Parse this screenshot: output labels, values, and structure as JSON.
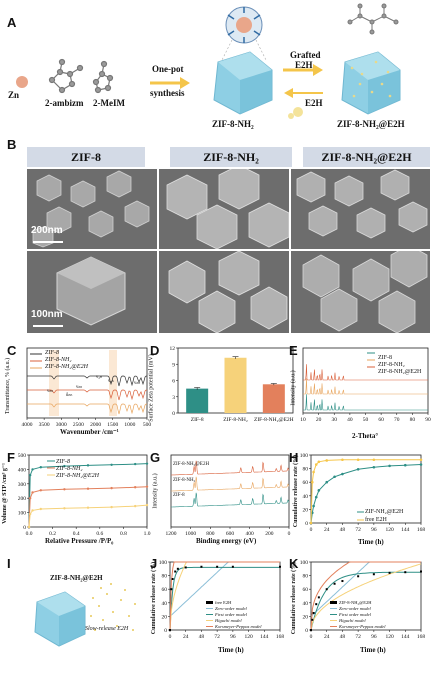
{
  "panel_labels": {
    "A": "A",
    "B": "B",
    "C": "C",
    "D": "D",
    "E": "E",
    "F": "F",
    "G": "G",
    "H": "H",
    "I": "I",
    "J": "J",
    "K": "K"
  },
  "schemeA": {
    "zn": "Zn",
    "ambizm": "2-ambizm",
    "meim": "2-MeIM",
    "onepot_1": "One-pot",
    "onepot_2": "synthesis",
    "grafted_1": "Grafted",
    "grafted_2": "E2H",
    "e2h": "E2H",
    "product1": "ZIF-8-NH₂",
    "product2": "ZIF-8-NH₂@E2H",
    "color_zn": "#e9a68a",
    "color_crystal": "#8ecfe4",
    "color_arrow": "#f4c54a"
  },
  "panelB": {
    "headers": [
      "ZIF-8",
      "ZIF-8-NH₂",
      "ZIF-8-NH₂@E2H"
    ],
    "scale_top": "200nm",
    "scale_bottom": "100nm",
    "header_color": "#d3dae6"
  },
  "panelC": {
    "legend": [
      "ZIF-8",
      "ZIF-8-NH₂",
      "ZIF-8-NH₂@E2H"
    ],
    "ylabel": "Transmittance, % (a.u.)",
    "xlabel": "Wavenumber /cm⁻¹",
    "xticks": [
      "4000",
      "3500",
      "3000",
      "2500",
      "2000",
      "1500",
      "1000",
      "500"
    ],
    "annotations": [
      "νₙₕ",
      "δₙₕ",
      "νₙₕ",
      "ν₂ₙ",
      "νₒₕ",
      "νₙₕ"
    ],
    "colors": [
      "#333333",
      "#d9603b",
      "#e8a55e"
    ]
  },
  "chart_data": [
    {
      "panel": "D",
      "type": "bar",
      "categories": [
        "ZIF-8",
        "ZIF-8-NH₂",
        "ZIF-8-NH₂@E2H"
      ],
      "values": [
        4.5,
        10.2,
        5.3
      ],
      "errors": [
        0.2,
        0.2,
        0.15
      ],
      "ylabel": "Surface Zeta potential (mV)",
      "yticks": [
        "0",
        "3",
        "6",
        "9",
        "12"
      ],
      "ylim": [
        0,
        12
      ],
      "colors": [
        "#2e8f86",
        "#f6d27a",
        "#e3805c"
      ]
    },
    {
      "panel": "E",
      "type": "line",
      "legend": [
        "ZIF-8",
        "ZIF-8-NH₂",
        "ZIF-8-NH₂@E2H"
      ],
      "ylabel": "Intensity (a.u.)",
      "xlabel": "2-Theta°",
      "xticks": [
        "10",
        "20",
        "30",
        "40",
        "50",
        "60",
        "70",
        "80",
        "90"
      ],
      "colors": [
        "#2e8f86",
        "#e8a55e",
        "#d9603b"
      ]
    },
    {
      "panel": "F",
      "type": "line",
      "legend": [
        "ZIF-8",
        "ZIF-8-NH₂",
        "ZIF-8-NH₂@E2H"
      ],
      "ylabel": "Volume @ STP /cm³ g⁻¹",
      "xlabel": "Relative Pressure /P/P₀",
      "xticks": [
        "0.0",
        "0.2",
        "0.4",
        "0.6",
        "0.8",
        "1.0"
      ],
      "yticks": [
        "0",
        "100",
        "200",
        "300",
        "400",
        "500"
      ],
      "ylim": [
        0,
        500
      ],
      "series": [
        {
          "name": "ZIF-8",
          "x": [
            0,
            0.01,
            0.03,
            0.1,
            0.3,
            0.5,
            0.7,
            0.9,
            1.0
          ],
          "values": [
            0,
            360,
            400,
            415,
            423,
            428,
            432,
            437,
            440
          ]
        },
        {
          "name": "ZIF-8-NH₂",
          "x": [
            0,
            0.01,
            0.03,
            0.1,
            0.3,
            0.5,
            0.7,
            0.9,
            1.0
          ],
          "values": [
            0,
            200,
            240,
            255,
            262,
            266,
            270,
            276,
            280
          ]
        },
        {
          "name": "ZIF-8-NH₂@E2H",
          "x": [
            0,
            0.01,
            0.03,
            0.1,
            0.3,
            0.5,
            0.7,
            0.9,
            1.0
          ],
          "values": [
            0,
            90,
            115,
            125,
            130,
            134,
            138,
            145,
            152
          ]
        }
      ],
      "colors": [
        "#2e8f86",
        "#e3805c",
        "#f6d27a"
      ]
    },
    {
      "panel": "G",
      "type": "line",
      "legend": [
        "ZIF-8-NH₂@E2H",
        "ZIF-8-NH₂",
        "ZIF-8"
      ],
      "ylabel": "Intensity (a.u.)",
      "xlabel": "Binding energy (eV)",
      "xticks": [
        "1200",
        "1000",
        "800",
        "600",
        "400",
        "200",
        "0"
      ],
      "colors": [
        "#d9603b",
        "#e8a55e",
        "#2e8f86"
      ]
    },
    {
      "panel": "H",
      "type": "line",
      "ylabel": "Cumulative release rate (%)",
      "xlabel": "Time (h)",
      "xticks": [
        "0",
        "24",
        "48",
        "72",
        "96",
        "120",
        "144",
        "168"
      ],
      "yticks": [
        "0",
        "20",
        "40",
        "60",
        "80",
        "100"
      ],
      "xlim": [
        0,
        168
      ],
      "ylim": [
        0,
        100
      ],
      "series": [
        {
          "name": "ZIF-NH₂@E2H",
          "x": [
            0,
            2,
            4,
            8,
            12,
            24,
            36,
            48,
            72,
            96,
            120,
            144,
            168
          ],
          "values": [
            0,
            15,
            25,
            38,
            48,
            60,
            68,
            72,
            79,
            82,
            84,
            85,
            86
          ]
        },
        {
          "name": "free E2H",
          "x": [
            0,
            2,
            4,
            8,
            12,
            24,
            48,
            72,
            96,
            168
          ],
          "values": [
            0,
            60,
            75,
            86,
            90,
            92,
            93,
            93,
            93,
            93
          ]
        }
      ],
      "colors": [
        "#2e8f86",
        "#f6c64a"
      ]
    },
    {
      "panel": "J",
      "type": "line",
      "ylabel": "Cumulative release rate (%)",
      "xlabel": "Time (h)",
      "xticks": [
        "0",
        "24",
        "48",
        "72",
        "96",
        "120",
        "144",
        "168"
      ],
      "yticks": [
        "0",
        "20",
        "40",
        "60",
        "80",
        "100"
      ],
      "xlim": [
        0,
        168
      ],
      "ylim": [
        0,
        100
      ],
      "legend": [
        "free E2H",
        "Zero-order model",
        "First order model",
        "Higuchi model",
        "Korsmeyer-Peppas model"
      ],
      "series": [
        {
          "name": "free E2H",
          "x": [
            0,
            2,
            4,
            8,
            12,
            24,
            48,
            72,
            96,
            168
          ],
          "values": [
            0,
            60,
            75,
            86,
            90,
            92,
            93,
            93,
            93,
            93
          ]
        }
      ],
      "colors": [
        "#000000",
        "#8cbfd8",
        "#2e8f86",
        "#f6d27a",
        "#e3805c"
      ]
    },
    {
      "panel": "K",
      "type": "line",
      "ylabel": "Cumulative release rate (%)",
      "xlabel": "Time (h)",
      "xticks": [
        "0",
        "24",
        "48",
        "72",
        "96",
        "120",
        "144",
        "168"
      ],
      "yticks": [
        "0",
        "20",
        "40",
        "60",
        "80",
        "100"
      ],
      "xlim": [
        0,
        168
      ],
      "ylim": [
        0,
        100
      ],
      "legend": [
        "ZIF-8-NH₂@E2H",
        "Zero-order model",
        "First order model",
        "Higuchi model",
        "Korsmeyer-Peppas model"
      ],
      "series": [
        {
          "name": "ZIF-8-NH₂@E2H",
          "x": [
            0,
            2,
            4,
            8,
            12,
            24,
            36,
            48,
            72,
            96,
            120,
            144,
            168
          ],
          "values": [
            0,
            15,
            25,
            38,
            48,
            60,
            68,
            72,
            79,
            82,
            84,
            85,
            86
          ]
        }
      ],
      "colors": [
        "#000000",
        "#8cbfd8",
        "#2e8f86",
        "#f6d27a",
        "#e3805c"
      ]
    }
  ],
  "panelI": {
    "title": "ZIF-8-NH₂@E2H",
    "caption": "Slow-release E2H"
  }
}
